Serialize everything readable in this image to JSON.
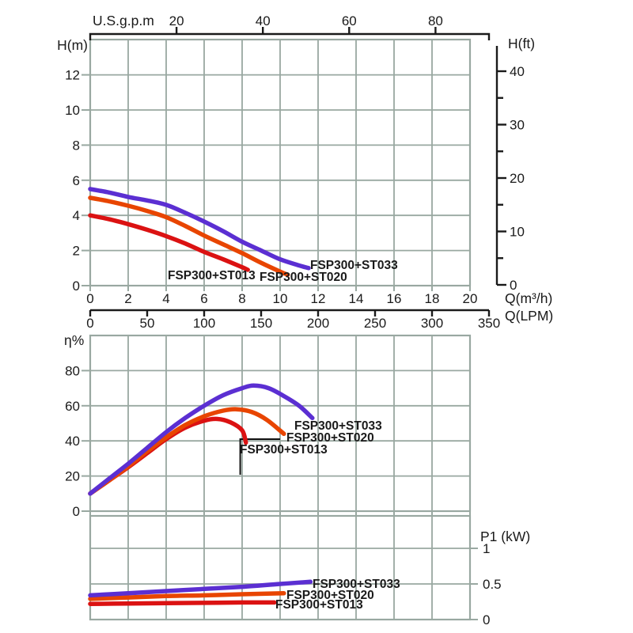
{
  "figure": {
    "description": "Pump performance curves for three pump models",
    "models": [
      "FSP300+ST033",
      "FSP300+ST020",
      "FSP300+ST013"
    ]
  },
  "colors": {
    "st033": "#5b2fd2",
    "st020": "#e84500",
    "st013": "#db1212",
    "grid": "#99a8a1",
    "axis": "#1a1a1a",
    "marker": "#111111"
  },
  "axes": {
    "usgpm": {
      "title": "U.S.g.p.m",
      "tick_labels": [
        "20",
        "40",
        "60",
        "80"
      ]
    },
    "h_m": {
      "title": "H(m)",
      "tick_labels": [
        "12",
        "10",
        "8",
        "6",
        "4",
        "2",
        "0"
      ]
    },
    "h_ft": {
      "title": "H(ft)",
      "tick_labels": [
        "40",
        "30",
        "20",
        "10",
        "0"
      ]
    },
    "q_m3h": {
      "title": "Q(m³/h)",
      "tick_labels": [
        "0",
        "2",
        "4",
        "6",
        "8",
        "10",
        "12",
        "14",
        "16",
        "18",
        "20"
      ]
    },
    "q_lpm": {
      "title": "Q(LPM)",
      "tick_labels": [
        "0",
        "50",
        "100",
        "150",
        "200",
        "250",
        "300",
        "350"
      ]
    },
    "eta": {
      "title": "η%",
      "tick_labels": [
        "80",
        "60",
        "40",
        "20",
        "0"
      ]
    },
    "p1": {
      "title": "P1 (kW)",
      "tick_labels": [
        "1",
        "0.5",
        "0"
      ]
    }
  },
  "series_labels": {
    "st033": "FSP300+ST033",
    "st020": "FSP300+ST020",
    "st013": "FSP300+ST013"
  },
  "chart_data": [
    {
      "id": "head",
      "type": "line",
      "xlabel": "Q(m³/h)",
      "xlabel_secondary": "Q(LPM)",
      "xlabel_top": "U.S.g.p.m",
      "ylabel": "H(m)",
      "ylabel_right": "H(ft)",
      "xlim": [
        0,
        20
      ],
      "ylim": [
        0,
        14
      ],
      "grid": true,
      "series": [
        {
          "name": "FSP300+ST033",
          "color_key": "st033",
          "points": [
            [
              0,
              5.5
            ],
            [
              1,
              5.3
            ],
            [
              2,
              5.05
            ],
            [
              3,
              4.85
            ],
            [
              4,
              4.6
            ],
            [
              5,
              4.15
            ],
            [
              6,
              3.65
            ],
            [
              7,
              3.1
            ],
            [
              8,
              2.5
            ],
            [
              9,
              2.0
            ],
            [
              10,
              1.5
            ],
            [
              11,
              1.15
            ],
            [
              11.5,
              1.0
            ]
          ]
        },
        {
          "name": "FSP300+ST020",
          "color_key": "st020",
          "points": [
            [
              0,
              5.0
            ],
            [
              1,
              4.8
            ],
            [
              2,
              4.55
            ],
            [
              3,
              4.25
            ],
            [
              4,
              3.9
            ],
            [
              5,
              3.4
            ],
            [
              6,
              2.85
            ],
            [
              7,
              2.35
            ],
            [
              8,
              1.85
            ],
            [
              9,
              1.3
            ],
            [
              10,
              0.8
            ],
            [
              10.4,
              0.62
            ]
          ]
        },
        {
          "name": "FSP300+ST013",
          "color_key": "st013",
          "points": [
            [
              0,
              4.0
            ],
            [
              1,
              3.78
            ],
            [
              2,
              3.5
            ],
            [
              3,
              3.18
            ],
            [
              4,
              2.82
            ],
            [
              5,
              2.4
            ],
            [
              6,
              1.92
            ],
            [
              7,
              1.5
            ],
            [
              8,
              1.05
            ],
            [
              8.3,
              0.9
            ]
          ]
        }
      ]
    },
    {
      "id": "efficiency",
      "type": "line",
      "xlabel": "Q(m³/h)",
      "ylabel": "η%",
      "xlim": [
        0,
        20
      ],
      "ylim": [
        0,
        100
      ],
      "grid": true,
      "marker": {
        "shape": "corner",
        "corner_q": 7.9,
        "corner_eta": 41,
        "q_end": 10.0,
        "eta_end": 20.7
      },
      "series": [
        {
          "name": "FSP300+ST033",
          "color_key": "st033",
          "points": [
            [
              0,
              10
            ],
            [
              1,
              18.5
            ],
            [
              2,
              27
            ],
            [
              3,
              36
            ],
            [
              4,
              45
            ],
            [
              5,
              53
            ],
            [
              6,
              60
            ],
            [
              7,
              66
            ],
            [
              8,
              70
            ],
            [
              8.6,
              71.5
            ],
            [
              9.4,
              70
            ],
            [
              10.2,
              65.5
            ],
            [
              11,
              60
            ],
            [
              11.7,
              53
            ]
          ]
        },
        {
          "name": "FSP300+ST020",
          "color_key": "st020",
          "points": [
            [
              0,
              10
            ],
            [
              1,
              17.5
            ],
            [
              2,
              25.5
            ],
            [
              3,
              34
            ],
            [
              4,
              42
            ],
            [
              5,
              49
            ],
            [
              6,
              54
            ],
            [
              7,
              57.2
            ],
            [
              7.7,
              58
            ],
            [
              8.5,
              56.5
            ],
            [
              9.3,
              52
            ],
            [
              10.2,
              44
            ]
          ]
        },
        {
          "name": "FSP300+ST013",
          "color_key": "st013",
          "points": [
            [
              0,
              10
            ],
            [
              1,
              17.5
            ],
            [
              2,
              25
            ],
            [
              3,
              33
            ],
            [
              4,
              41
            ],
            [
              5,
              47.5
            ],
            [
              6,
              51.5
            ],
            [
              6.7,
              52.5
            ],
            [
              7.4,
              50.5
            ],
            [
              8,
              46
            ],
            [
              8.2,
              39
            ]
          ]
        }
      ]
    },
    {
      "id": "power",
      "type": "line",
      "xlabel": "Q(m³/h)",
      "ylabel": "P1 (kW)",
      "xlim": [
        0,
        20
      ],
      "ylim": [
        0,
        1.45
      ],
      "grid": true,
      "series": [
        {
          "name": "FSP300+ST033",
          "color_key": "st033",
          "points": [
            [
              0,
              0.34
            ],
            [
              2,
              0.37
            ],
            [
              4,
              0.4
            ],
            [
              6,
              0.43
            ],
            [
              8,
              0.46
            ],
            [
              10,
              0.5
            ],
            [
              11.6,
              0.53
            ]
          ]
        },
        {
          "name": "FSP300+ST020",
          "color_key": "st020",
          "points": [
            [
              0,
              0.29
            ],
            [
              2,
              0.31
            ],
            [
              4,
              0.33
            ],
            [
              6,
              0.34
            ],
            [
              8,
              0.355
            ],
            [
              10.2,
              0.37
            ]
          ]
        },
        {
          "name": "FSP300+ST013",
          "color_key": "st013",
          "points": [
            [
              0,
              0.22
            ],
            [
              2,
              0.225
            ],
            [
              4,
              0.23
            ],
            [
              6,
              0.235
            ],
            [
              8,
              0.24
            ],
            [
              9.7,
              0.24
            ]
          ]
        }
      ]
    }
  ]
}
